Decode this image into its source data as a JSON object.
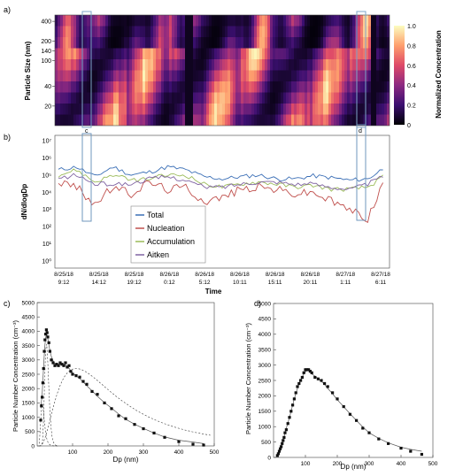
{
  "chart_data": [
    {
      "panel": "a)",
      "type": "heatmap",
      "ylabel": "Particle Size (nm)",
      "yscale": "log",
      "ylim": [
        10,
        500
      ],
      "yticks": [
        "400",
        "200",
        "140",
        "100",
        "40",
        "20"
      ],
      "colorbar": {
        "label": "Normalized Concentration",
        "ticks": [
          "1.0",
          "0.8",
          "0.6",
          "0.4",
          "0.2",
          "0"
        ],
        "range": [
          0,
          1
        ],
        "colors": [
          "#000004",
          "#3b0f70",
          "#8c2981",
          "#de4968",
          "#fe9f6d",
          "#fcfdbf"
        ]
      },
      "highlight_boxes": [
        "c",
        "d"
      ]
    },
    {
      "panel": "b)",
      "type": "line",
      "xlabel": "Time",
      "ylabel": "dN/dlogDp",
      "yscale": "log",
      "ylim": [
        1,
        10000000
      ],
      "yticks": [
        "10⁷",
        "10⁶",
        "10⁵",
        "10⁴",
        "10³",
        "10²",
        "10¹",
        "10⁰"
      ],
      "xticks": [
        [
          "8/25/18",
          "9:12"
        ],
        [
          "8/25/18",
          "14:12"
        ],
        [
          "8/25/18",
          "19:12"
        ],
        [
          "8/26/18",
          "0:12"
        ],
        [
          "8/26/18",
          "5:12"
        ],
        [
          "8/26/18",
          "10:11"
        ],
        [
          "8/26/18",
          "15:11"
        ],
        [
          "8/26/18",
          "20:11"
        ],
        [
          "8/27/18",
          "1:11"
        ],
        [
          "8/27/18",
          "6:11"
        ]
      ],
      "box_labels": [
        "c",
        "d"
      ],
      "series": [
        {
          "name": "Total",
          "color": "#3b6fb6",
          "values": [
            200000,
            300000,
            80000,
            300000,
            100000,
            150000,
            300000,
            200000,
            80000,
            60000,
            80000,
            100000,
            60000,
            60000,
            90000,
            70000,
            50000,
            60000,
            300000
          ]
        },
        {
          "name": "Nucleation",
          "color": "#c0504d",
          "values": [
            40000,
            20000,
            2000,
            20000,
            8000,
            40000,
            15000,
            20000,
            3000,
            5000,
            15000,
            20000,
            15000,
            8000,
            10000,
            3000,
            1000,
            300,
            80000
          ]
        },
        {
          "name": "Accumulation",
          "color": "#9bbb59",
          "values": [
            100000,
            200000,
            40000,
            100000,
            50000,
            60000,
            100000,
            100000,
            30000,
            20000,
            30000,
            40000,
            30000,
            20000,
            25000,
            15000,
            15000,
            20000,
            100000
          ]
        },
        {
          "name": "Aitken",
          "color": "#8064a2",
          "values": [
            60000,
            100000,
            30000,
            30000,
            30000,
            60000,
            80000,
            50000,
            20000,
            20000,
            30000,
            40000,
            40000,
            30000,
            30000,
            20000,
            15000,
            30000,
            100000
          ]
        }
      ]
    },
    {
      "panel": "c)",
      "type": "scatter",
      "xlabel": "Dp (nm)",
      "ylabel": "Particle Number Concentration (cm⁻³)",
      "xlim": [
        0,
        500
      ],
      "ylim": [
        0,
        5000
      ],
      "xticks": [
        "100",
        "200",
        "300",
        "400",
        "500"
      ],
      "yticks": [
        "0",
        "500",
        "1000",
        "1500",
        "2000",
        "2500",
        "3000",
        "3500",
        "4000",
        "4500",
        "5000"
      ],
      "x": [
        10,
        12,
        14,
        16,
        18,
        20,
        22,
        24,
        26,
        28,
        30,
        33,
        36,
        40,
        45,
        50,
        55,
        60,
        65,
        70,
        75,
        80,
        85,
        90,
        95,
        100,
        110,
        120,
        130,
        140,
        155,
        170,
        190,
        210,
        230,
        250,
        275,
        300,
        330,
        360,
        400,
        440,
        470
      ],
      "y": [
        900,
        1400,
        1700,
        2200,
        2700,
        3300,
        3700,
        3900,
        4050,
        3950,
        3800,
        3600,
        3300,
        3000,
        2900,
        2800,
        2850,
        2800,
        2900,
        2850,
        2800,
        2900,
        2750,
        2800,
        2600,
        2500,
        2450,
        2400,
        2250,
        2150,
        1900,
        1800,
        1500,
        1300,
        1050,
        950,
        750,
        600,
        450,
        300,
        150,
        60,
        30
      ]
    },
    {
      "panel": "d)",
      "type": "scatter",
      "xlabel": "Dp (nm)",
      "ylabel": "Particle Number Concentration (cm⁻³)",
      "xlim": [
        0,
        500
      ],
      "ylim": [
        0,
        5000
      ],
      "xticks": [
        "100",
        "200",
        "300",
        "400",
        "500"
      ],
      "yticks": [
        "0",
        "500",
        "1000",
        "1500",
        "2000",
        "2500",
        "3000",
        "3500",
        "4000",
        "4500",
        "5000"
      ],
      "x": [
        12,
        15,
        18,
        21,
        24,
        27,
        30,
        33,
        36,
        40,
        45,
        50,
        55,
        60,
        65,
        70,
        75,
        80,
        85,
        90,
        95,
        100,
        105,
        110,
        115,
        120,
        130,
        140,
        150,
        160,
        170,
        185,
        200,
        220,
        240,
        260,
        280,
        300,
        330,
        360,
        400,
        430,
        465
      ],
      "y": [
        60,
        120,
        200,
        280,
        350,
        450,
        550,
        650,
        800,
        900,
        1100,
        1300,
        1500,
        1700,
        1900,
        2100,
        2300,
        2400,
        2500,
        2600,
        2750,
        2850,
        2850,
        2850,
        2800,
        2750,
        2600,
        2550,
        2500,
        2400,
        2300,
        2100,
        1900,
        1650,
        1400,
        1200,
        950,
        800,
        600,
        450,
        300,
        200,
        100
      ]
    }
  ]
}
